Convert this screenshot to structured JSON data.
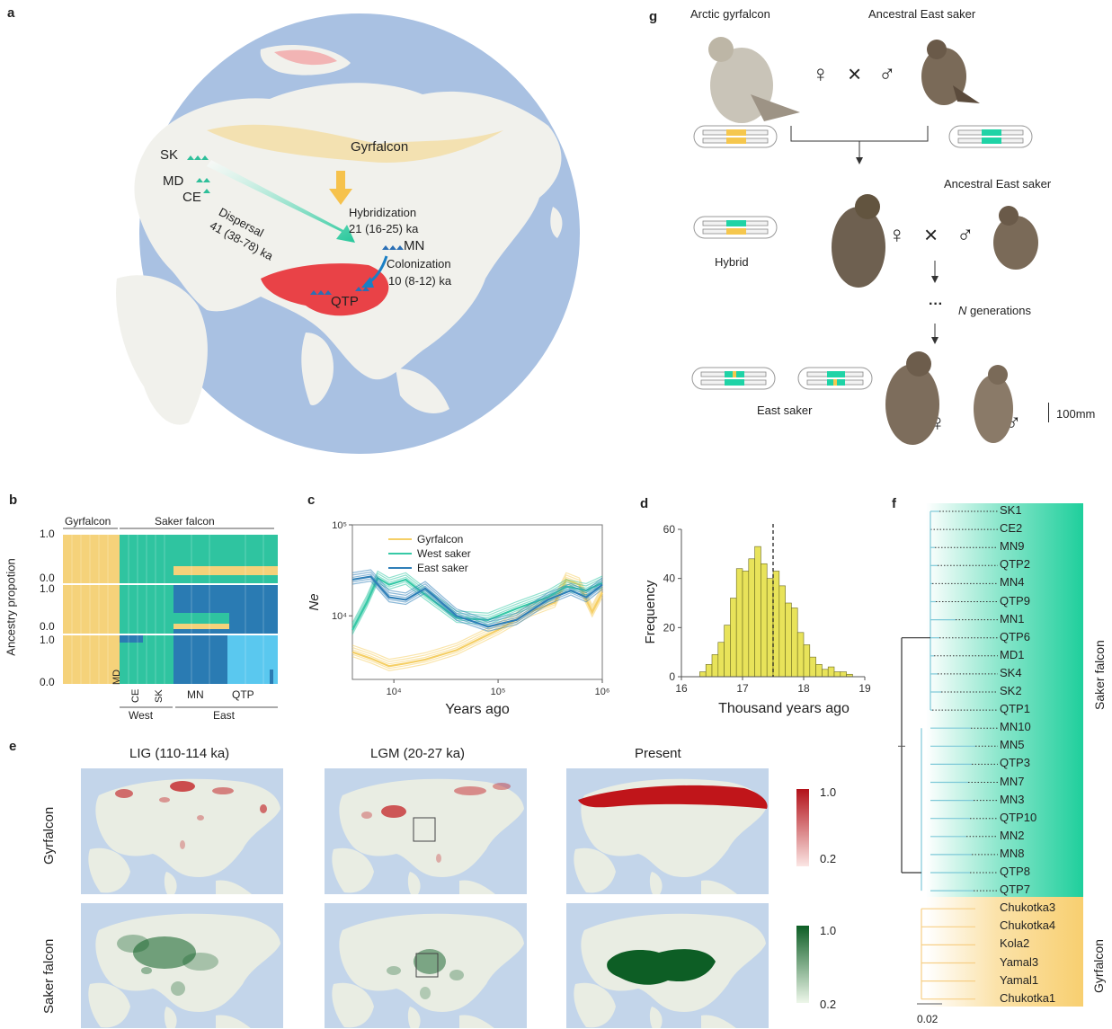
{
  "panel_labels": {
    "a": "a",
    "b": "b",
    "c": "c",
    "d": "d",
    "e": "e",
    "f": "f",
    "g": "g"
  },
  "panel_a": {
    "gyrfalcon": "Gyrfalcon",
    "sk": "SK",
    "md": "MD",
    "ce": "CE",
    "mn": "MN",
    "qtp": "QTP",
    "dispersal_1": "Dispersal",
    "dispersal_2": "41 (38-78) ka",
    "hybrid_1": "Hybridization",
    "hybrid_2": "21 (16-25) ka",
    "colon_1": "Colonization",
    "colon_2": "10 (8-12) ka",
    "colors": {
      "ocean": "#a9c1e2",
      "land": "#f1f1ec",
      "gyr": "#f6cf6b",
      "saker_west": "#2fbf9a",
      "saker_east": "#2b6fb5",
      "qtp": "#e8232a"
    }
  },
  "panel_b": {
    "group_gyr": "Gyrfalcon",
    "group_saker": "Saker falcon",
    "ylabel": "Ancestry propotion",
    "y_top": "1.0",
    "y_bottom": "0.0",
    "x_md": "MD",
    "x_ce": "CE",
    "x_sk": "SK",
    "x_mn": "MN",
    "x_qtp": "QTP",
    "west": "West",
    "east": "East",
    "colors": {
      "gyr": "#f5d27a",
      "west": "#2fc4a0",
      "east": "#2a7bb3",
      "qtp": "#5ac8ef"
    }
  },
  "chart_data": [
    {
      "type": "line",
      "panel": "c",
      "xlabel": "Years ago",
      "ylabel": "Ne",
      "x_scale": "log",
      "y_scale": "log",
      "xlim": [
        4000,
        1000000
      ],
      "ylim": [
        2000,
        100000
      ],
      "x_ticks": [
        "10⁴",
        "10⁵",
        "10⁶"
      ],
      "y_ticks": [
        "10⁵",
        "10⁴"
      ],
      "legend_position": "top-left",
      "series": [
        {
          "name": "Gyrfalcon",
          "color": "#f5cf66",
          "x": [
            4000,
            6000,
            9000,
            13000,
            20000,
            40000,
            100000,
            200000,
            350000,
            450000,
            600000,
            800000,
            1000000
          ],
          "y": [
            4000,
            3400,
            2800,
            3000,
            3300,
            4200,
            7000,
            11000,
            14000,
            25000,
            22000,
            11000,
            18000
          ]
        },
        {
          "name": "West saker",
          "color": "#36c9a6",
          "x": [
            4000,
            5500,
            7000,
            9000,
            13000,
            20000,
            40000,
            80000,
            150000,
            300000,
            450000,
            700000,
            1000000
          ],
          "y": [
            7000,
            14000,
            26000,
            22000,
            25000,
            17000,
            9500,
            9000,
            12000,
            16000,
            21000,
            19000,
            23000
          ]
        },
        {
          "name": "East saker",
          "color": "#2f7fb8",
          "x": [
            4000,
            6000,
            9000,
            13000,
            20000,
            40000,
            80000,
            150000,
            300000,
            500000,
            700000,
            1000000
          ],
          "y": [
            25000,
            27000,
            16000,
            15000,
            20000,
            10000,
            7600,
            9000,
            15000,
            19000,
            16000,
            22000
          ]
        }
      ]
    },
    {
      "type": "bar",
      "panel": "d",
      "xlabel": "Thousand years ago",
      "ylabel": "Frequency",
      "xlim": [
        16,
        19
      ],
      "ylim": [
        0,
        60
      ],
      "x_ticks": [
        "16",
        "17",
        "18",
        "19"
      ],
      "y_ticks": [
        "0",
        "20",
        "40",
        "60"
      ],
      "bin_width": 0.1,
      "bin_starts": [
        16.3,
        16.4,
        16.5,
        16.6,
        16.7,
        16.8,
        16.9,
        17.0,
        17.1,
        17.2,
        17.3,
        17.4,
        17.5,
        17.6,
        17.7,
        17.8,
        17.9,
        18.0,
        18.1,
        18.2,
        18.3,
        18.4,
        18.5,
        18.6,
        18.7
      ],
      "values": [
        2,
        5,
        9,
        14,
        21,
        32,
        44,
        43,
        48,
        53,
        46,
        40,
        43,
        37,
        30,
        28,
        18,
        13,
        8,
        5,
        3,
        4,
        2,
        2,
        1
      ],
      "vline": 17.5
    }
  ],
  "panel_c_legend": [
    "Gyrfalcon",
    "West saker",
    "East saker"
  ],
  "panel_e": {
    "col1": "LIG (110-114 ka)",
    "col2": "LGM (20-27 ka)",
    "col3": "Present",
    "row1": "Gyrfalcon",
    "row2": "Saker falcon",
    "red_max": "1.0",
    "red_min": "0.2",
    "green_max": "1.0",
    "green_min": "0.2",
    "colors": {
      "ocean": "#c3d5ea",
      "land": "#e9ede3",
      "red": "#c0151a",
      "green": "#0d5e25"
    }
  },
  "panel_f": {
    "saker_tips": [
      "SK1",
      "CE2",
      "MN9",
      "QTP2",
      "MN4",
      "QTP9",
      "MN1",
      "QTP6",
      "MD1",
      "SK4",
      "SK2",
      "QTP1",
      "MN10",
      "MN5",
      "QTP3",
      "MN7",
      "MN3",
      "QTP10",
      "MN2",
      "MN8",
      "QTP8",
      "QTP7"
    ],
    "gyr_tips": [
      "Chukotka3",
      "Chukotka4",
      "Kola2",
      "Yamal3",
      "Yamal1",
      "Chukotka1"
    ],
    "saker_label": "Saker falcon",
    "gyr_label": "Gyrfalcon",
    "scale": "0.02",
    "colors": {
      "saker": "#7ec9d8",
      "gyr": "#f7cf86",
      "saker_band": "#1fcf9c",
      "gyr_band": "#f8cf70"
    }
  },
  "panel_g": {
    "arctic": "Arctic gyrfalcon",
    "ancestral1": "Ancestral East saker",
    "ancestral2": "Ancestral East saker",
    "hybrid": "Hybrid",
    "east": "East saker",
    "generations_n": "N",
    "generations": " generations",
    "dots": "···",
    "female": "♀",
    "male": "♂",
    "cross": "×",
    "scale": "100mm",
    "colors": {
      "chrom_gyr": "#f5c74e",
      "chrom_saker": "#1fd3a6"
    }
  }
}
